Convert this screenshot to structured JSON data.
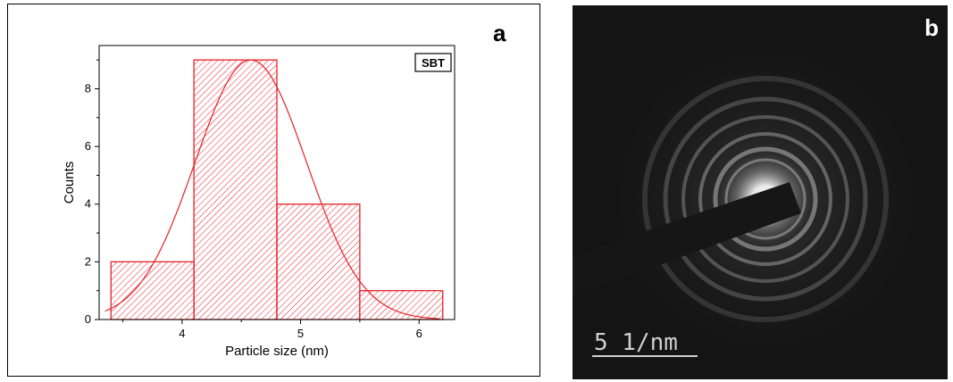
{
  "panel_a": {
    "label": "a",
    "chart_data": {
      "type": "bar",
      "bins": [
        [
          3.4,
          4.1
        ],
        [
          4.1,
          4.8
        ],
        [
          4.8,
          5.5
        ],
        [
          5.5,
          6.2
        ]
      ],
      "values": [
        2,
        9,
        4,
        1
      ],
      "xlabel": "Particle size (nm)",
      "ylabel": "Counts",
      "xlim": [
        3.3,
        6.3
      ],
      "ylim": [
        0,
        9.5
      ],
      "xticks": [
        4,
        5,
        6
      ],
      "yticks": [
        0,
        2,
        4,
        6,
        8
      ],
      "legend": "SBT",
      "legend_position": "top-right",
      "grid": false,
      "fit": {
        "type": "gaussian",
        "mean": 4.58,
        "sigma": 0.47,
        "amplitude": 9.0
      },
      "bar_color": "#e8202a",
      "hatch": "diagonal"
    }
  },
  "panel_b": {
    "label": "b",
    "scale_bar_text": "5 1/nm",
    "image_description": "electron diffraction ring pattern"
  }
}
